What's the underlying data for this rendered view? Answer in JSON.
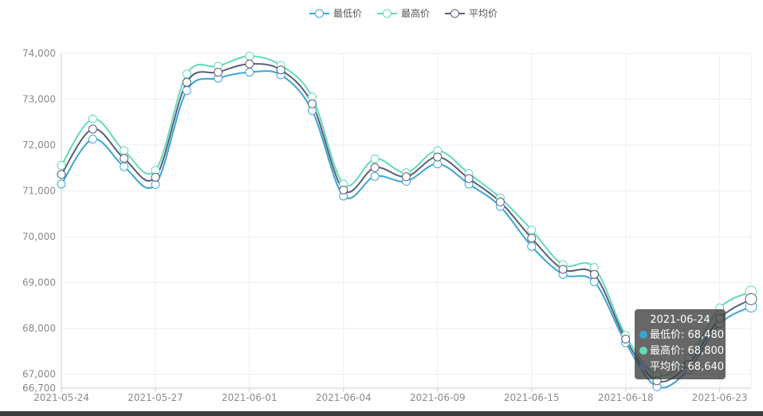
{
  "colors": {
    "series": [
      "#3ca5d6",
      "#63dbb6",
      "#5b5e78"
    ],
    "grid": "#eeeeee",
    "axis": "#cccccc"
  },
  "chart_data": {
    "type": "line",
    "smooth": true,
    "x": [
      "2021-05-24",
      "2021-05-25",
      "2021-05-26",
      "2021-05-27",
      "2021-05-28",
      "2021-05-31",
      "2021-06-01",
      "2021-06-02",
      "2021-06-03",
      "2021-06-04",
      "2021-06-07",
      "2021-06-08",
      "2021-06-09",
      "2021-06-10",
      "2021-06-11",
      "2021-06-15",
      "2021-06-16",
      "2021-06-17",
      "2021-06-18",
      "2021-06-21",
      "2021-06-22",
      "2021-06-23",
      "2021-06-24"
    ],
    "x_tick_labels": [
      "2021-05-24",
      "2021-05-27",
      "2021-06-01",
      "2021-06-04",
      "2021-06-09",
      "2021-06-15",
      "2021-06-18",
      "2021-06-23"
    ],
    "x_tick_index": [
      0,
      3,
      6,
      9,
      12,
      15,
      18,
      21
    ],
    "ylim": [
      66700,
      74000
    ],
    "y_ticks": [
      66700,
      67000,
      68000,
      69000,
      70000,
      71000,
      72000,
      73000,
      74000
    ],
    "y_tick_labels": [
      "66,700",
      "67,000",
      "68,000",
      "69,000",
      "70,000",
      "71,000",
      "72,000",
      "73,000",
      "74,000"
    ],
    "grid": true,
    "legend_position": "top-center",
    "series": [
      {
        "name": "最低价",
        "values": [
          71150,
          72130,
          71530,
          71140,
          73190,
          73460,
          73590,
          73530,
          72750,
          70890,
          71320,
          71210,
          71590,
          71150,
          70660,
          69790,
          69180,
          69020,
          67690,
          66730,
          67100,
          68100,
          68480
        ]
      },
      {
        "name": "最高价",
        "values": [
          71560,
          72570,
          71880,
          71450,
          73550,
          73720,
          73940,
          73740,
          73050,
          71150,
          71700,
          71400,
          71880,
          71380,
          70850,
          70150,
          69390,
          69330,
          67850,
          66990,
          67350,
          68450,
          68800
        ]
      },
      {
        "name": "平均价",
        "values": [
          71360,
          72350,
          71710,
          71300,
          73370,
          73590,
          73770,
          73640,
          72900,
          71020,
          71510,
          71310,
          71740,
          71270,
          70760,
          69970,
          69290,
          69180,
          67770,
          66860,
          67220,
          68220,
          68640
        ]
      }
    ]
  },
  "tooltip": {
    "title": "2021-06-24",
    "rows": [
      {
        "label": "最低价",
        "value": "68,480"
      },
      {
        "label": "最高价",
        "value": "68,800"
      },
      {
        "label": "平均价",
        "value": "68,640"
      }
    ]
  }
}
